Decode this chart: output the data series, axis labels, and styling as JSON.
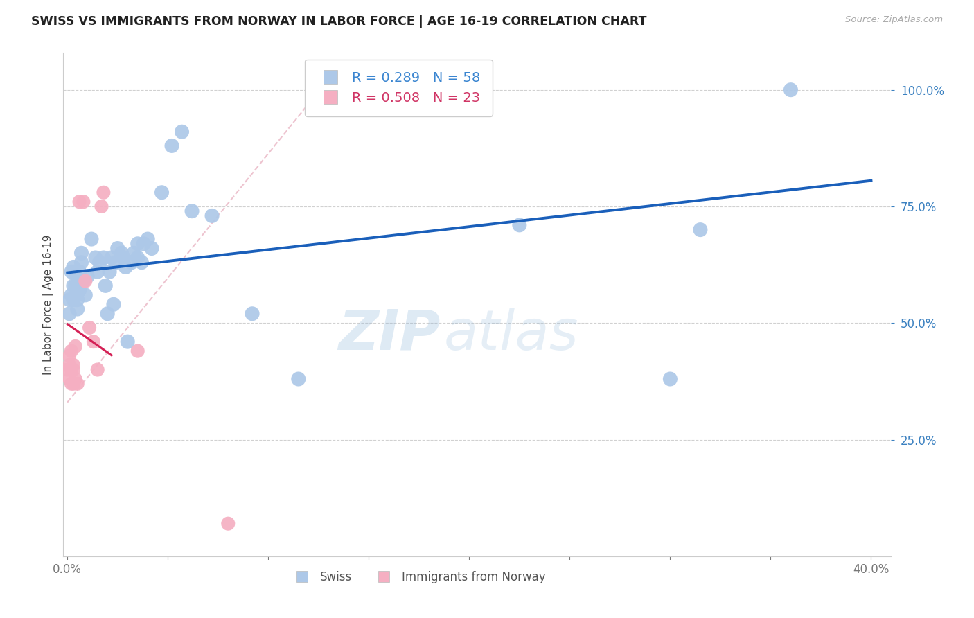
{
  "title": "SWISS VS IMMIGRANTS FROM NORWAY IN LABOR FORCE | AGE 16-19 CORRELATION CHART",
  "source": "Source: ZipAtlas.com",
  "ylabel": "In Labor Force | Age 16-19",
  "xlim": [
    -0.002,
    0.41
  ],
  "ylim": [
    0.0,
    1.08
  ],
  "yticks": [
    0.25,
    0.5,
    0.75,
    1.0
  ],
  "xticks": [
    0.0,
    0.05,
    0.1,
    0.15,
    0.2,
    0.25,
    0.3,
    0.35,
    0.4
  ],
  "swiss_R": 0.289,
  "swiss_N": 58,
  "norway_R": 0.508,
  "norway_N": 23,
  "swiss_color": "#adc8e8",
  "norway_color": "#f5afc2",
  "swiss_line_color": "#1a5fba",
  "norway_line_color": "#d42055",
  "norway_dash_color": "#e8b0c0",
  "watermark_zip": "ZIP",
  "watermark_atlas": "atlas",
  "swiss_x": [
    0.001,
    0.001,
    0.002,
    0.002,
    0.003,
    0.003,
    0.003,
    0.004,
    0.004,
    0.005,
    0.005,
    0.005,
    0.005,
    0.005,
    0.006,
    0.006,
    0.006,
    0.007,
    0.007,
    0.008,
    0.009,
    0.01,
    0.012,
    0.014,
    0.015,
    0.016,
    0.018,
    0.019,
    0.02,
    0.021,
    0.022,
    0.023,
    0.024,
    0.025,
    0.027,
    0.028,
    0.029,
    0.03,
    0.032,
    0.033,
    0.035,
    0.035,
    0.037,
    0.038,
    0.04,
    0.042,
    0.047,
    0.052,
    0.057,
    0.062,
    0.072,
    0.092,
    0.115,
    0.175,
    0.225,
    0.3,
    0.315,
    0.36
  ],
  "swiss_y": [
    0.55,
    0.52,
    0.56,
    0.61,
    0.58,
    0.62,
    0.55,
    0.58,
    0.61,
    0.6,
    0.57,
    0.53,
    0.6,
    0.55,
    0.61,
    0.6,
    0.57,
    0.63,
    0.65,
    0.59,
    0.56,
    0.6,
    0.68,
    0.64,
    0.61,
    0.63,
    0.64,
    0.58,
    0.52,
    0.61,
    0.64,
    0.54,
    0.63,
    0.66,
    0.65,
    0.64,
    0.62,
    0.46,
    0.63,
    0.65,
    0.64,
    0.67,
    0.63,
    0.67,
    0.68,
    0.66,
    0.78,
    0.88,
    0.91,
    0.74,
    0.73,
    0.52,
    0.38,
    1.0,
    0.71,
    0.38,
    0.7,
    1.0
  ],
  "norway_x": [
    0.0,
    0.001,
    0.001,
    0.001,
    0.002,
    0.002,
    0.002,
    0.003,
    0.003,
    0.003,
    0.004,
    0.004,
    0.005,
    0.006,
    0.008,
    0.009,
    0.011,
    0.013,
    0.015,
    0.017,
    0.018,
    0.035,
    0.08
  ],
  "norway_y": [
    0.4,
    0.43,
    0.41,
    0.38,
    0.4,
    0.44,
    0.37,
    0.37,
    0.4,
    0.41,
    0.45,
    0.38,
    0.37,
    0.76,
    0.76,
    0.59,
    0.49,
    0.46,
    0.4,
    0.75,
    0.78,
    0.44,
    0.07
  ]
}
